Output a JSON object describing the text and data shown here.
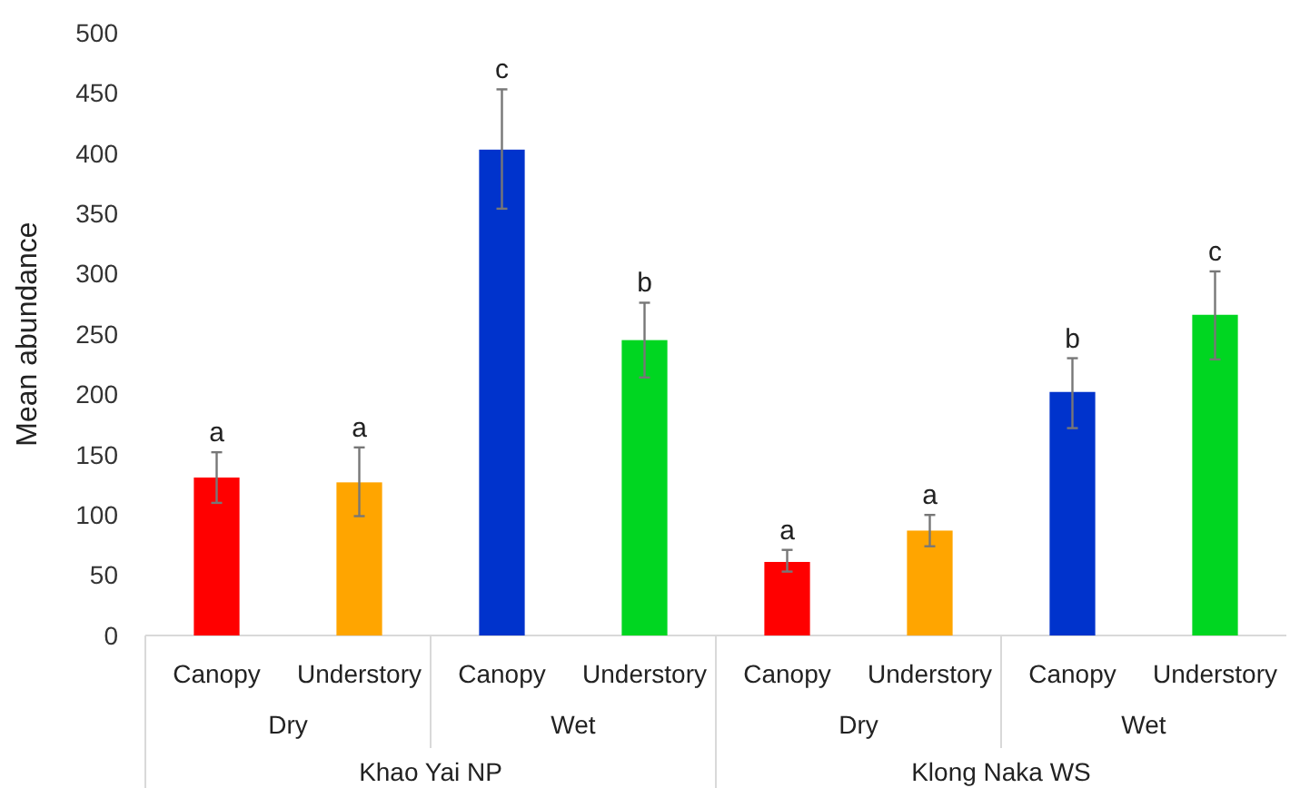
{
  "chart_data": {
    "type": "bar",
    "ylabel": "Mean abundance",
    "categories": [
      "Canopy",
      "Understory",
      "Canopy",
      "Understory",
      "Canopy",
      "Understory",
      "Canopy",
      "Understory"
    ],
    "values": [
      131,
      127,
      403,
      245,
      61,
      87,
      202,
      266
    ],
    "colors": [
      "#ff0000",
      "#ffa500",
      "#0033cc",
      "#00d621",
      "#ff0000",
      "#ffa500",
      "#0033cc",
      "#00d621"
    ],
    "errors": [
      [
        110,
        152
      ],
      [
        99,
        156
      ],
      [
        354,
        453
      ],
      [
        214,
        276
      ],
      [
        53,
        71
      ],
      [
        74,
        100
      ],
      [
        172,
        230
      ],
      [
        229,
        302
      ]
    ],
    "value_labels": [
      "a",
      "a",
      "c",
      "b",
      "a",
      "a",
      "b",
      "c"
    ],
    "annotations": [
      "Dry",
      "Wet",
      "Dry",
      "Wet",
      "Khao Yai NP",
      "Klong Naka WS"
    ],
    "ylim": [
      0,
      500
    ],
    "yticks": [
      0,
      50,
      100,
      150,
      200,
      250,
      300,
      350,
      400,
      450,
      500
    ],
    "grid": false
  }
}
